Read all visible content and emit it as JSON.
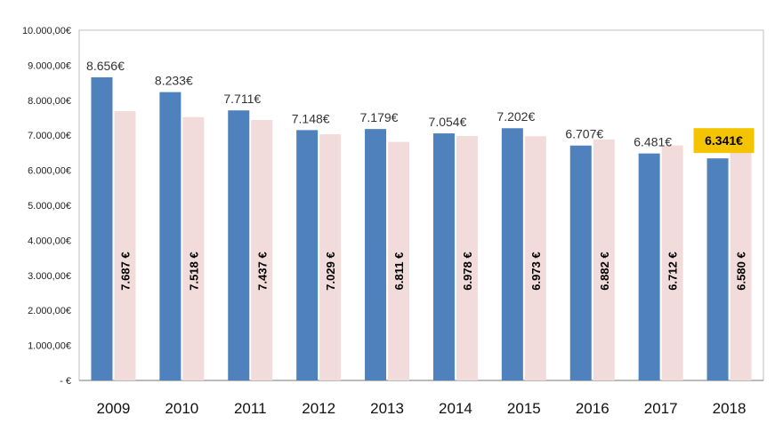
{
  "chart_data": {
    "type": "bar",
    "categories": [
      "2009",
      "2010",
      "2011",
      "2012",
      "2013",
      "2014",
      "2015",
      "2016",
      "2017",
      "2018"
    ],
    "series": [
      {
        "color": "#4f81bd",
        "values": [
          8656,
          8233,
          7711,
          7148,
          7179,
          7054,
          7202,
          6707,
          6481,
          6341
        ],
        "labels": [
          "8.656€",
          "8.233€",
          "7.711€",
          "7.148€",
          "7.179€",
          "7.054€",
          "7.202€",
          "6.707€",
          "6.481€",
          "6.341€"
        ],
        "highlight_label": "6.341€"
      },
      {
        "color": "#f2dcdb",
        "values": [
          7687,
          7518,
          7437,
          7029,
          6811,
          6978,
          6973,
          6882,
          6712,
          6580
        ],
        "labels": [
          "7.687 €",
          "7.518 €",
          "7.437 €",
          "7.029 €",
          "6.811 €",
          "6.978 €",
          "6.973 €",
          "6.882 €",
          "6.712 €",
          "6.580 €"
        ]
      }
    ],
    "yticks": [
      "- €",
      "1.000,00€",
      "2.000,00€",
      "3.000,00€",
      "4.000,00€",
      "5.000,00€",
      "6.000,00€",
      "7.000,00€",
      "8.000,00€",
      "9.000,00€",
      "10.000,00€"
    ],
    "ylim": [
      0,
      10000
    ],
    "highlight_color": "#f5c400",
    "grid": false
  }
}
